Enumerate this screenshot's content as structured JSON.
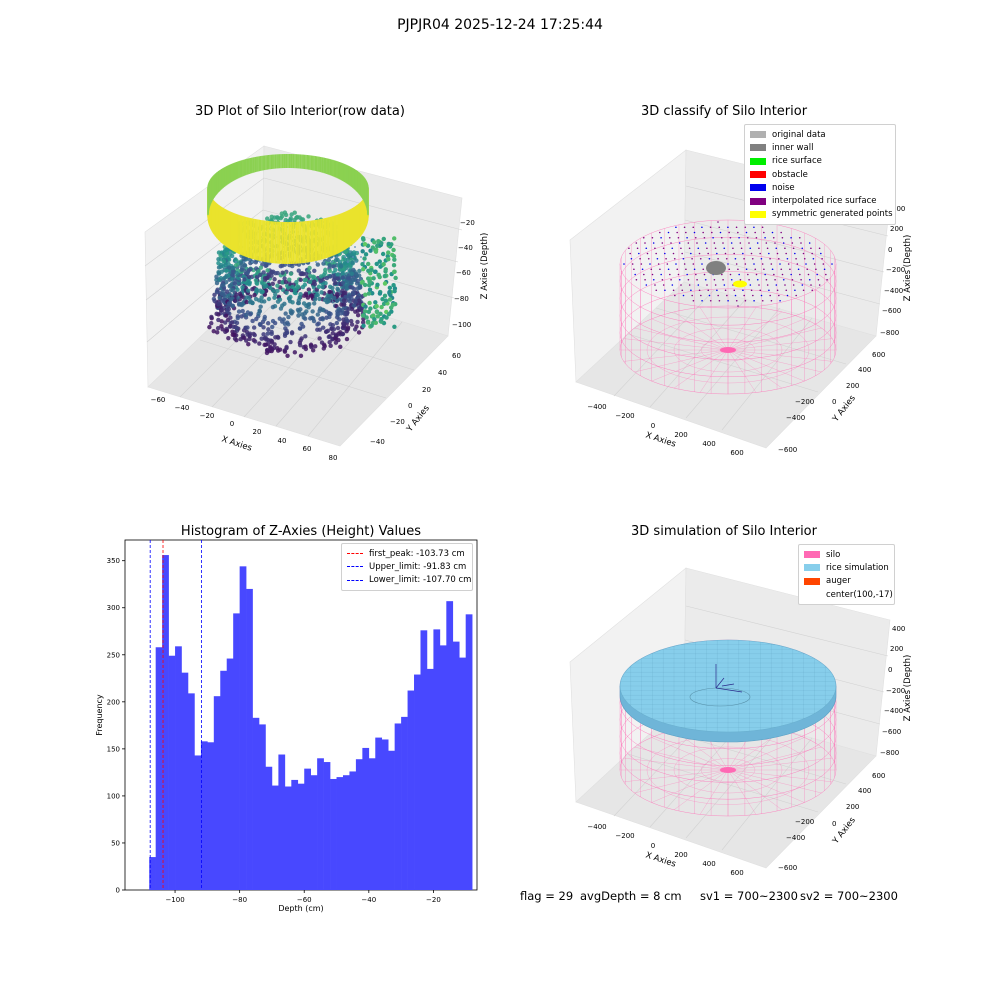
{
  "figure": {
    "suptitle": "PJPJR04 2025-12-24 17:25:44"
  },
  "panels": {
    "raw": {
      "title": "3D Plot of Silo Interior(row data)",
      "xlabel": "X Axies",
      "ylabel": "Y Axies",
      "zlabel": "Z Axies (Depth)",
      "x_ticks": [
        "−60",
        "−40",
        "−20",
        "0",
        "20",
        "40",
        "60",
        "80"
      ],
      "y_ticks": [
        "−40",
        "−20",
        "0",
        "20",
        "40",
        "60"
      ],
      "z_ticks": [
        "−100",
        "−80",
        "−60",
        "−40",
        "−20"
      ]
    },
    "classify": {
      "title": "3D classify of Silo Interior",
      "xlabel": "X Axies",
      "ylabel": "Y Axies",
      "zlabel": "Z Axies (Depth)",
      "x_ticks": [
        "−400",
        "−200",
        "0",
        "200",
        "400",
        "600"
      ],
      "y_ticks": [
        "−600",
        "−400",
        "−200",
        "0",
        "200",
        "400",
        "600"
      ],
      "z_ticks": [
        "−800",
        "−600",
        "−400",
        "−200",
        "0",
        "200",
        "400"
      ],
      "legend": [
        {
          "label": "original data",
          "color": "#b0b0b0"
        },
        {
          "label": "inner wall",
          "color": "#808080"
        },
        {
          "label": "rice surface",
          "color": "#00ee00"
        },
        {
          "label": "obstacle",
          "color": "#ff0000"
        },
        {
          "label": "noise",
          "color": "#0000ee"
        },
        {
          "label": "interpolated rice surface",
          "color": "#800080"
        },
        {
          "label": "symmetric generated points",
          "color": "#ffff00"
        }
      ]
    },
    "simulation": {
      "title": "3D simulation of Silo Interior",
      "xlabel": "X Axies",
      "ylabel": "Y Axies",
      "zlabel": "Z Axies (Depth)",
      "x_ticks": [
        "−400",
        "−200",
        "0",
        "200",
        "400",
        "600"
      ],
      "y_ticks": [
        "−600",
        "−400",
        "−200",
        "0",
        "200",
        "400",
        "600"
      ],
      "z_ticks": [
        "−800",
        "−600",
        "−400",
        "−200",
        "0",
        "200",
        "400"
      ],
      "legend": [
        {
          "label": "silo",
          "color": "#ff69b4"
        },
        {
          "label": "rice simulation",
          "color": "#87ceeb"
        },
        {
          "label": "auger",
          "color": "#ff4500"
        },
        {
          "label": "center(100,-17)",
          "color": ""
        }
      ]
    }
  },
  "chart_data": {
    "type": "bar",
    "title": "Histogram of Z-Axies (Height) Values",
    "xlabel": "Depth (cm)",
    "ylabel": "Frequency",
    "xlim": [
      -115.5,
      -6.5
    ],
    "ylim": [
      0,
      372
    ],
    "x_ticks": [
      -100,
      -80,
      -60,
      -40,
      -20
    ],
    "x_tick_labels": [
      "−100",
      "−80",
      "−60",
      "−40",
      "−20"
    ],
    "y_ticks": [
      0,
      50,
      100,
      150,
      200,
      250,
      300,
      350
    ],
    "y_tick_labels": [
      "0",
      "50",
      "100",
      "150",
      "200",
      "250",
      "300",
      "350"
    ],
    "bar_color": "#4848ff",
    "bin_edges": [
      -108.0,
      -106.0,
      -104.0,
      -102.0,
      -100.0,
      -98.0,
      -96.0,
      -94.0,
      -92.0,
      -90.0,
      -88.0,
      -86.0,
      -84.0,
      -82.0,
      -80.0,
      -78.0,
      -76.0,
      -74.0,
      -72.0,
      -70.0,
      -68.0,
      -66.0,
      -64.0,
      -62.0,
      -60.0,
      -58.0,
      -56.0,
      -54.0,
      -52.0,
      -50.0,
      -48.0,
      -46.0,
      -44.0,
      -42.0,
      -40.0,
      -38.0,
      -36.0,
      -34.0,
      -32.0,
      -30.0,
      -28.0,
      -26.0,
      -24.0,
      -22.0,
      -20.0,
      -18.0,
      -16.0,
      -14.0,
      -12.0,
      -10.0,
      -8.0
    ],
    "values": [
      35,
      258,
      356,
      249,
      259,
      231,
      209,
      143,
      158,
      157,
      206,
      233,
      246,
      294,
      344,
      320,
      183,
      176,
      131,
      111,
      144,
      110,
      117,
      113,
      129,
      122,
      140,
      136,
      118,
      120,
      122,
      126,
      139,
      151,
      140,
      162,
      160,
      148,
      177,
      184,
      212,
      229,
      276,
      235,
      277,
      260,
      307,
      264,
      247,
      293
    ],
    "lines": [
      {
        "label": "first_peak: -103.73 cm",
        "x": -103.73,
        "color": "#ff0000"
      },
      {
        "label": "Upper_limit: -91.83 cm",
        "x": -91.83,
        "color": "#0000ff"
      },
      {
        "label": "Lower_limit: -107.70 cm",
        "x": -107.7,
        "color": "#0000ff"
      }
    ],
    "legend_position": "upper right"
  },
  "status": {
    "flag": "flag = 29",
    "avg_depth": "avgDepth = 8 cm",
    "sv1": "sv1 = 700~2300",
    "sv2": "sv2 = 700~2300"
  }
}
